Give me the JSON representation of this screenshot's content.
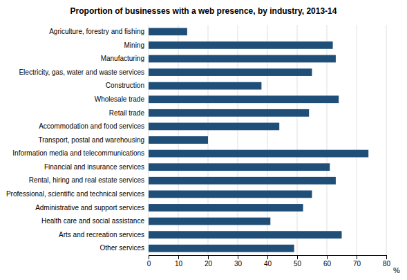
{
  "chart_data": {
    "type": "bar",
    "orientation": "horizontal",
    "title": "Proportion of businesses with a web presence, by industry, 2013-14",
    "xlabel": "%",
    "categories": [
      "Agriculture, forestry and fishing",
      "Mining",
      "Manufacturing",
      "Electricity, gas, water and waste services",
      "Construction",
      "Wholesale trade",
      "Retail trade",
      "Accommodation and food services",
      "Transport, postal and warehousing",
      "Information media and telecommunications",
      "Financial and insurance services",
      "Rental, hiring and real estate services",
      "Professional, scientific and technical services",
      "Administrative and support services",
      "Health care and social assistance",
      "Arts and recreation services",
      "Other services"
    ],
    "values": [
      13,
      62,
      63,
      55,
      38,
      64,
      54,
      44,
      20,
      74,
      61,
      63,
      55,
      52,
      41,
      65,
      49
    ],
    "color": "#1F4E79",
    "xlim": [
      0,
      80
    ],
    "xticks": [
      0,
      10,
      20,
      30,
      40,
      50,
      60,
      70,
      80
    ],
    "grid": true
  }
}
